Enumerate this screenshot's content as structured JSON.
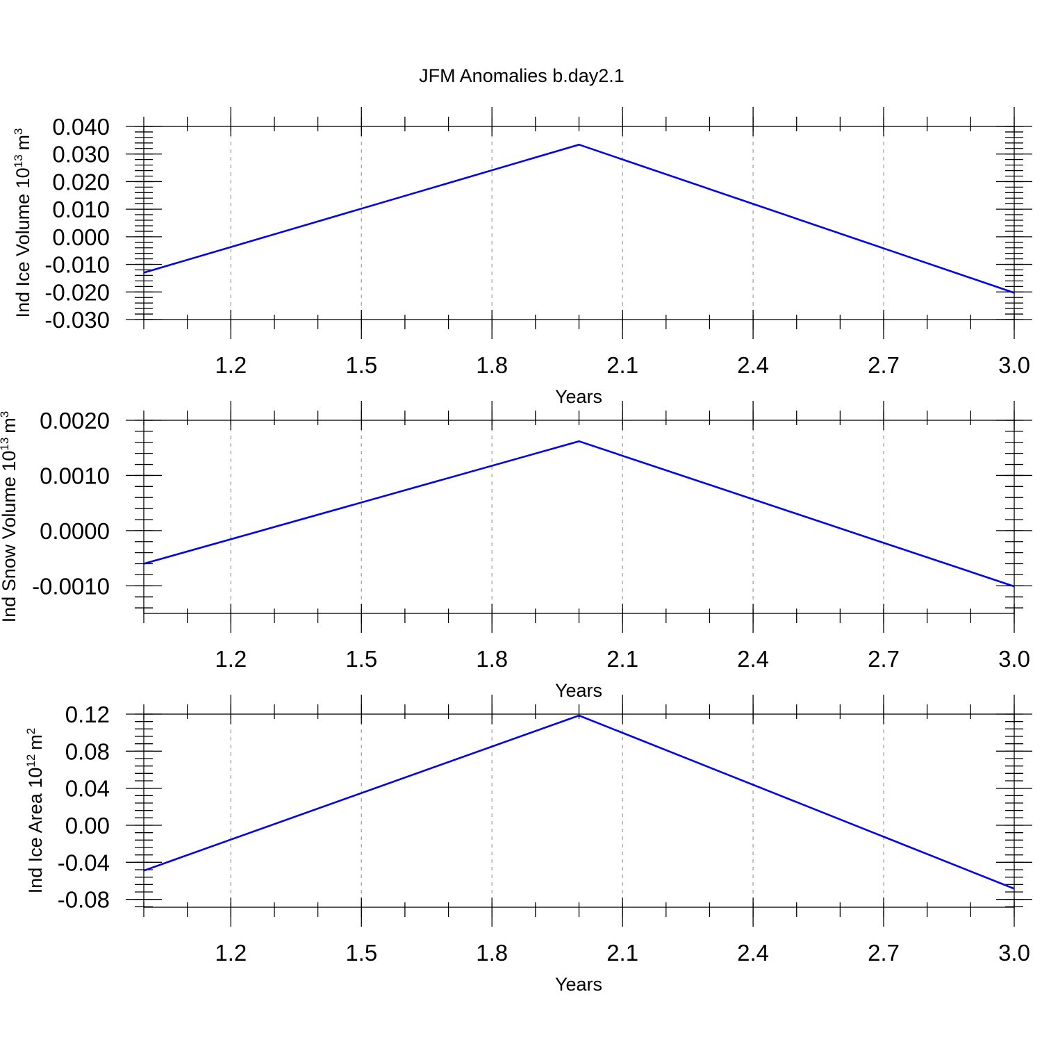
{
  "title": "JFM Anomalies b.day2.1",
  "colors": {
    "line": "#0000ee",
    "axis": "#000000",
    "grid": "#9a9a9a"
  },
  "chart_data": [
    {
      "type": "line",
      "ylabel": "Ind Ice Volume 10",
      "ylabel_sup": "13",
      "ylabel_unit": "m",
      "ylabel_unit_sup": "3",
      "xlabel": "Years",
      "xlim": [
        1.0,
        3.0
      ],
      "ylim": [
        -0.03,
        0.04
      ],
      "x_ticks": [
        "1.2",
        "1.5",
        "1.8",
        "2.1",
        "2.4",
        "2.7",
        "3.0"
      ],
      "y_ticks": [
        "-0.030",
        "-0.020",
        "-0.010",
        "0.000",
        "0.010",
        "0.020",
        "0.030",
        "0.040"
      ],
      "grid": "vertical dashed",
      "series": [
        {
          "x": [
            1.0,
            2.0,
            3.0
          ],
          "values": [
            -0.013,
            0.0334,
            -0.0203
          ]
        }
      ]
    },
    {
      "type": "line",
      "ylabel": "Ind Snow Volume 10",
      "ylabel_sup": "13",
      "ylabel_unit": "m",
      "ylabel_unit_sup": "3",
      "xlabel": "Years",
      "xlim": [
        1.0,
        3.0
      ],
      "ylim": [
        -0.0015,
        0.002
      ],
      "x_ticks": [
        "1.2",
        "1.5",
        "1.8",
        "2.1",
        "2.4",
        "2.7",
        "3.0"
      ],
      "y_ticks": [
        "-0.0010",
        "0.0000",
        "0.0010",
        "0.0020"
      ],
      "grid": "vertical dashed",
      "series": [
        {
          "x": [
            1.0,
            2.0,
            3.0
          ],
          "values": [
            -0.0006,
            0.00162,
            -0.00101
          ]
        }
      ]
    },
    {
      "type": "line",
      "ylabel": "Ind Ice Area 10",
      "ylabel_sup": "12",
      "ylabel_unit": "m",
      "ylabel_unit_sup": "2",
      "xlabel": "Years",
      "xlim": [
        1.0,
        3.0
      ],
      "ylim": [
        -0.0885,
        0.12
      ],
      "x_ticks": [
        "1.2",
        "1.5",
        "1.8",
        "2.1",
        "2.4",
        "2.7",
        "3.0"
      ],
      "y_ticks": [
        "-0.08",
        "-0.04",
        "0.00",
        "0.04",
        "0.08",
        "0.12"
      ],
      "grid": "vertical dashed",
      "series": [
        {
          "x": [
            1.0,
            2.0,
            3.0
          ],
          "values": [
            -0.049,
            0.1185,
            -0.0685
          ]
        }
      ]
    }
  ]
}
